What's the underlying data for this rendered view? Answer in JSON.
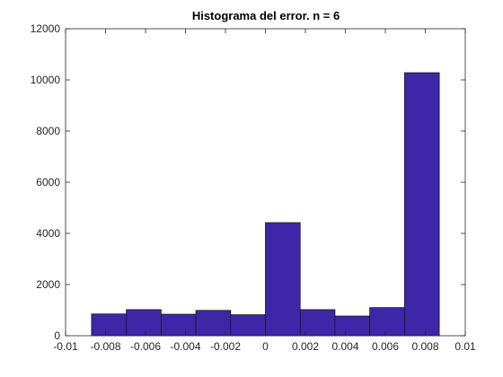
{
  "chart_data": {
    "type": "bar",
    "title": "Histograma del error. n = 6",
    "xlabel": "",
    "ylabel": "",
    "xlim": [
      -0.01,
      0.01
    ],
    "ylim": [
      0,
      12000
    ],
    "xticks": [
      -0.01,
      -0.008,
      -0.006,
      -0.004,
      -0.002,
      0,
      0.002,
      0.004,
      0.006,
      0.008,
      0.01
    ],
    "xtick_labels": [
      "-0.01",
      "-0.008",
      "-0.006",
      "-0.004",
      "-0.002",
      "0",
      "0.002",
      "0.004",
      "0.006",
      "0.008",
      "0.01"
    ],
    "yticks": [
      0,
      2000,
      4000,
      6000,
      8000,
      10000,
      12000
    ],
    "ytick_labels": [
      "0",
      "2000",
      "4000",
      "6000",
      "8000",
      "10000",
      "12000"
    ],
    "bin_edges": [
      -0.0087,
      -0.00696,
      -0.00522,
      -0.00348,
      -0.00174,
      0.0,
      0.00174,
      0.00348,
      0.00522,
      0.00696,
      0.0087
    ],
    "values": [
      850,
      1020,
      840,
      990,
      820,
      4420,
      1020,
      770,
      1100,
      10280
    ],
    "grid": false,
    "colors": {
      "bar_fill": "#3e26a8",
      "bar_edge": "#1a1a1a",
      "axis": "#262626"
    }
  }
}
